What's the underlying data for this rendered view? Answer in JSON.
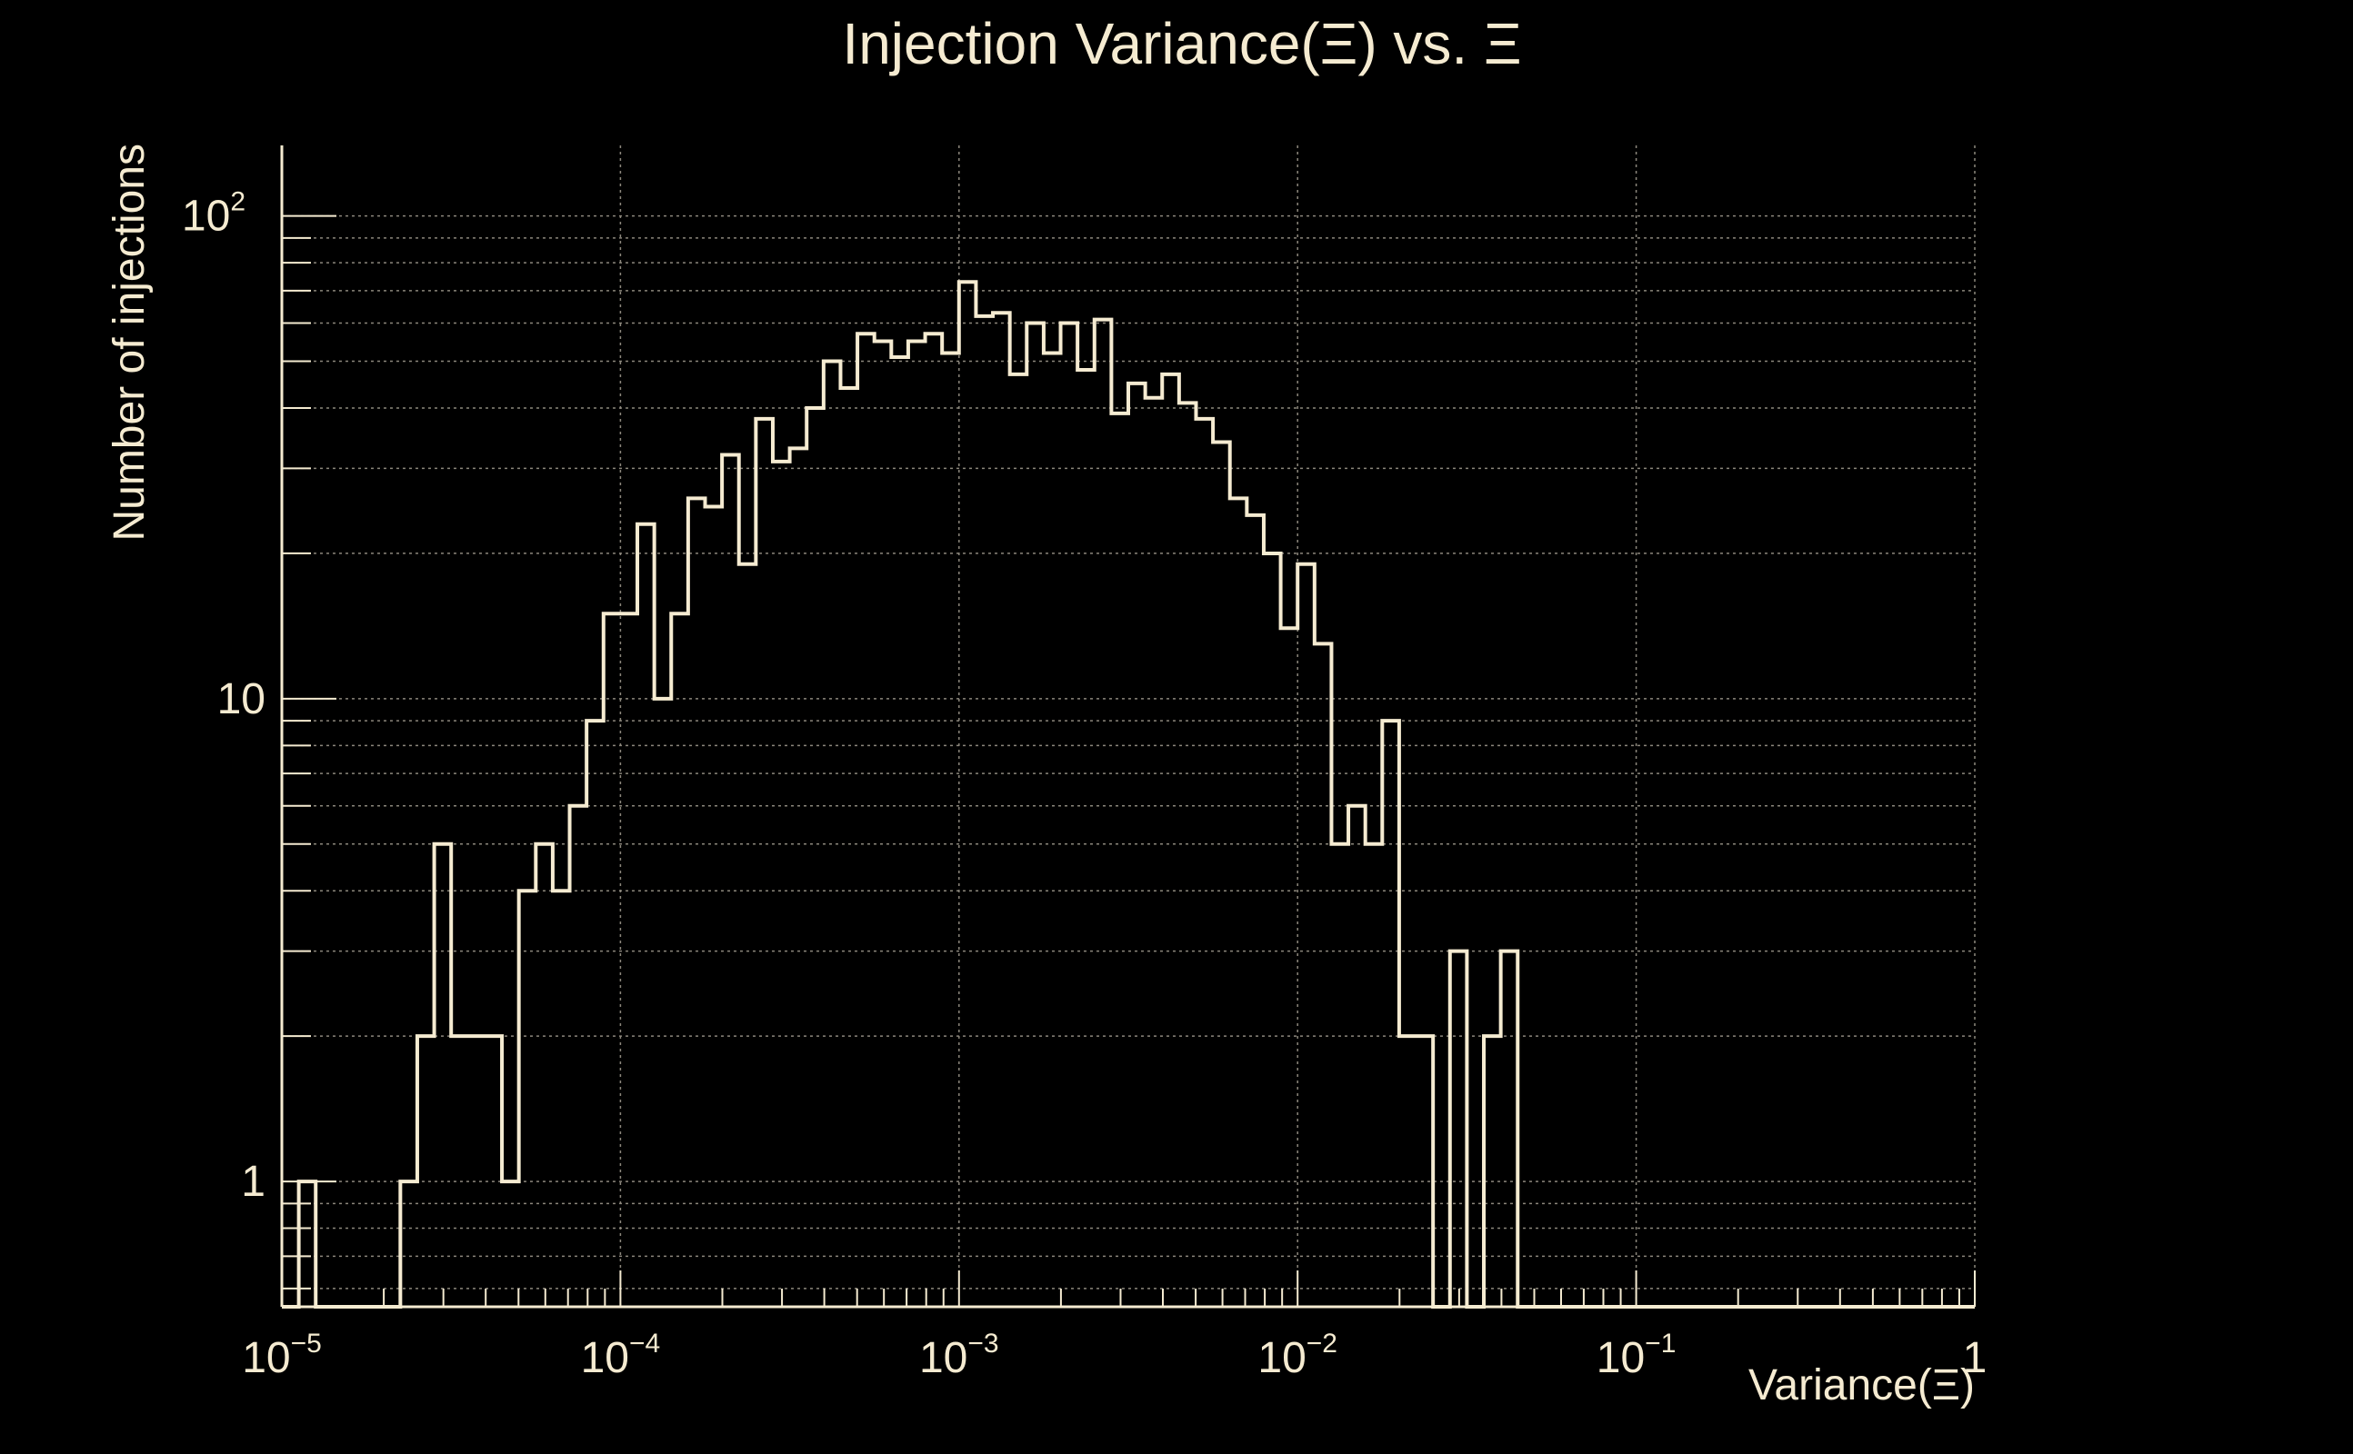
{
  "colors": {
    "background": "#000000",
    "foreground": "#f5ebd1",
    "grid": "#8c877c"
  },
  "chart_data": {
    "type": "histogram",
    "title": "Injection Variance(Ξ) vs. Ξ",
    "xlabel": "Variance(Ξ)",
    "ylabel": "Number of injections",
    "x_scale": "log",
    "y_scale": "log",
    "xlim": [
      1e-05,
      1
    ],
    "ylim": [
      0.55,
      140
    ],
    "grid": true,
    "x_ticks": [
      {
        "value": 1e-05,
        "base": "10",
        "exp": "−5"
      },
      {
        "value": 0.0001,
        "base": "10",
        "exp": "−4"
      },
      {
        "value": 0.001,
        "base": "10",
        "exp": "−3"
      },
      {
        "value": 0.01,
        "base": "10",
        "exp": "−2"
      },
      {
        "value": 0.1,
        "base": "10",
        "exp": "−1"
      },
      {
        "value": 1,
        "base": "1",
        "exp": ""
      }
    ],
    "y_ticks": [
      {
        "value": 1,
        "base": "1",
        "exp": ""
      },
      {
        "value": 10,
        "base": "10",
        "exp": ""
      },
      {
        "value": 100,
        "base": "10",
        "exp": "2"
      }
    ],
    "bins_per_decade": 20,
    "bin_start": 1e-05,
    "counts": [
      0,
      1,
      0,
      0,
      0,
      0,
      0,
      1,
      2,
      5,
      2,
      2,
      2,
      1,
      4,
      5,
      4,
      6,
      9,
      15,
      15,
      23,
      10,
      15,
      26,
      25,
      32,
      19,
      38,
      31,
      33,
      40,
      50,
      44,
      57,
      55,
      51,
      55,
      57,
      52,
      73,
      62,
      63,
      47,
      60,
      52,
      60,
      48,
      61,
      39,
      45,
      42,
      47,
      41,
      38,
      34,
      26,
      24,
      20,
      14,
      19,
      13,
      5,
      6,
      5,
      9,
      2,
      2,
      0,
      3,
      0,
      2,
      3,
      0,
      0,
      0,
      0,
      0,
      0,
      0,
      0,
      0,
      0,
      0,
      0,
      0,
      0,
      0,
      0,
      0,
      0,
      0,
      0,
      0,
      0,
      0,
      0,
      0,
      0,
      0
    ]
  }
}
